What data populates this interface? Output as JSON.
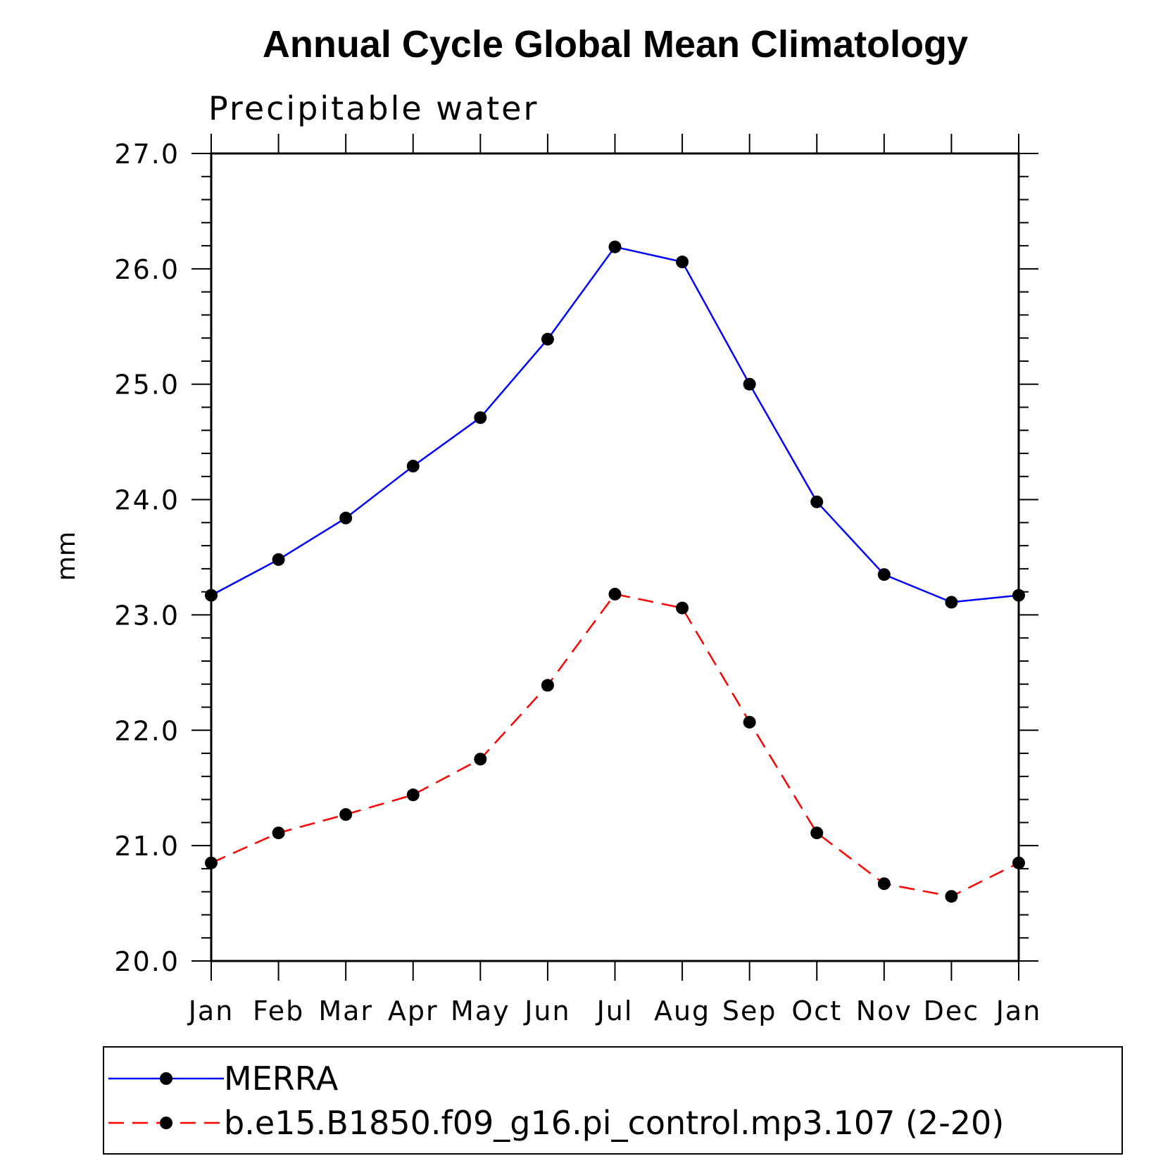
{
  "chart_data": {
    "type": "line",
    "title": "Annual Cycle Global Mean Climatology",
    "subtitle": "Precipitable water",
    "ylabel": "mm",
    "xlabel": "",
    "categories": [
      "Jan",
      "Feb",
      "Mar",
      "Apr",
      "May",
      "Jun",
      "Jul",
      "Aug",
      "Sep",
      "Oct",
      "Nov",
      "Dec",
      "Jan"
    ],
    "ylim": [
      20.0,
      27.0
    ],
    "yticks": [
      "20.0",
      "21.0",
      "22.0",
      "23.0",
      "24.0",
      "25.0",
      "26.0",
      "27.0"
    ],
    "grid": false,
    "legend_position": "bottom",
    "series": [
      {
        "name": "MERRA",
        "color": "#0000ff",
        "line_style": "solid",
        "marker": "filled-circle",
        "values": [
          23.17,
          23.48,
          23.84,
          24.29,
          24.71,
          25.39,
          26.19,
          26.06,
          25.0,
          23.98,
          23.35,
          23.11,
          23.17
        ]
      },
      {
        "name": "b.e15.B1850.f09_g16.pi_control.mp3.107 (2-20)",
        "color": "#ff0000",
        "line_style": "dashed",
        "marker": "filled-circle",
        "values": [
          20.85,
          21.11,
          21.27,
          21.44,
          21.75,
          22.39,
          23.18,
          23.06,
          22.07,
          21.11,
          20.67,
          20.56,
          20.85
        ]
      }
    ]
  }
}
